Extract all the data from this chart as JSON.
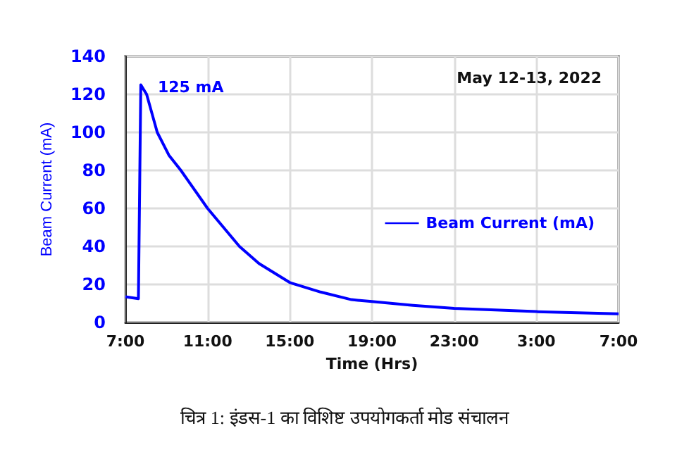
{
  "chart_data": {
    "type": "line",
    "xlabel": "Time (Hrs)",
    "ylabel": "Beam Current (mA)",
    "x": [
      "2022-05-12T07:00",
      "2022-05-12T07:38",
      "2022-05-12T07:45",
      "2022-05-12T08:02",
      "2022-05-12T08:33",
      "2022-05-12T09:07",
      "2022-05-12T09:42",
      "2022-05-12T11:00",
      "2022-05-12T12:33",
      "2022-05-12T13:30",
      "2022-05-12T15:00",
      "2022-05-12T16:30",
      "2022-05-12T18:00",
      "2022-05-12T19:00",
      "2022-05-12T21:00",
      "2022-05-12T23:00",
      "2022-05-13T03:00",
      "2022-05-13T07:00"
    ],
    "series": [
      {
        "name": "Beam Current (mA)",
        "color": "#0000ff",
        "values": [
          13.5,
          12.5,
          125,
          120,
          100,
          88,
          80,
          60,
          40,
          31,
          21,
          16,
          12,
          11,
          9,
          7.4,
          5.7,
          4.5
        ]
      }
    ],
    "xlim": [
      "2022-05-12T07:00",
      "2022-05-13T07:00"
    ],
    "xticks": [
      {
        "value": "2022-05-12T07:00",
        "label": "7:00"
      },
      {
        "value": "2022-05-12T11:00",
        "label": "11:00"
      },
      {
        "value": "2022-05-12T15:00",
        "label": "15:00"
      },
      {
        "value": "2022-05-12T19:00",
        "label": "19:00"
      },
      {
        "value": "2022-05-12T23:00",
        "label": "23:00"
      },
      {
        "value": "2022-05-13T03:00",
        "label": "3:00"
      },
      {
        "value": "2022-05-13T07:00",
        "label": "7:00"
      }
    ],
    "ylim": [
      0,
      140
    ],
    "yticks": [
      0,
      20,
      40,
      60,
      80,
      100,
      120,
      140
    ],
    "grid": true,
    "legend": "right",
    "marker": "none",
    "line_style": "solid",
    "annotations": [
      {
        "text": "125 mA",
        "x": "2022-05-12T07:45",
        "y": 125
      },
      "May 12-13, 2022",
      "चित्र 1: इंडस-1 का विशिष्ट उपयोगकर्ता मोड संचालन"
    ]
  }
}
